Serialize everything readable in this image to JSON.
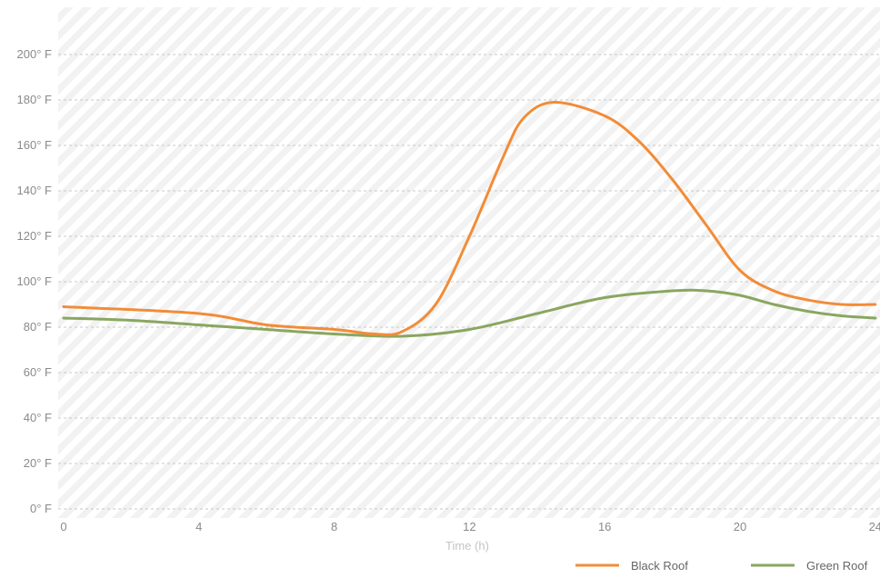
{
  "chart_data": {
    "type": "line",
    "title": "",
    "xlabel": "Time (h)",
    "ylabel": "",
    "xlim": [
      0,
      24.4
    ],
    "ylim": [
      -4,
      210
    ],
    "x_ticks": [
      0,
      4,
      8,
      12,
      16,
      20,
      24
    ],
    "x_tick_labels": [
      "0",
      "4",
      "8",
      "12",
      "16",
      "20",
      "24"
    ],
    "y_ticks": [
      0,
      20,
      40,
      60,
      80,
      100,
      120,
      140,
      160,
      180,
      200
    ],
    "y_tick_labels": [
      "0° F",
      "20° F",
      "40° F",
      "60° F",
      "80° F",
      "100° F",
      "120° F",
      "140° F",
      "160° F",
      "180° F",
      "200° F"
    ],
    "grid": true,
    "legend_position": "bottom-right",
    "series": [
      {
        "name": "Black Roof",
        "color": "#f28c38",
        "x": [
          0,
          4,
          6,
          8,
          9.2,
          10,
          11,
          12,
          13,
          13.6,
          14.5,
          16,
          17,
          18,
          19,
          20,
          21,
          22,
          23,
          24
        ],
        "y": [
          89,
          86,
          81,
          79,
          77,
          78,
          90,
          120,
          155,
          172,
          179,
          173,
          162,
          145,
          125,
          105,
          96,
          92,
          90,
          90
        ]
      },
      {
        "name": "Green Roof",
        "color": "#8aa660",
        "x": [
          0,
          2,
          4,
          6,
          8,
          10,
          12,
          14,
          16,
          18,
          19,
          20,
          21,
          22,
          23,
          24
        ],
        "y": [
          84,
          83,
          81,
          79,
          77,
          76,
          79,
          86,
          93,
          96,
          96,
          94,
          90,
          87,
          85,
          84
        ]
      }
    ]
  }
}
